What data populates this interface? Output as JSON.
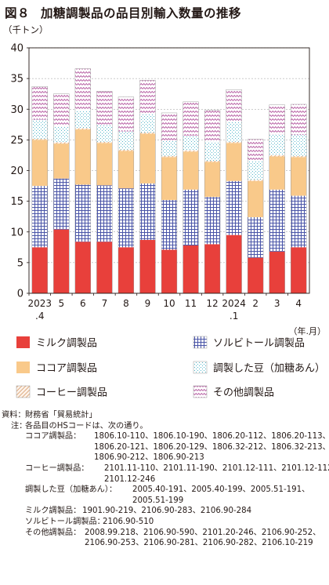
{
  "title": {
    "fig": "図８",
    "text": "加糖調製品の品目別輸入数量の推移"
  },
  "colors": {
    "milk": "#e8403b",
    "sorbitol_bg": "#ffffff",
    "sorbitol_fg": "#4a55a8",
    "cocoa": "#f9c98a",
    "cocoa_stroke": "#d9a760",
    "beans_bg": "#ffffff",
    "beans_fg": "#52b5c8",
    "coffee_bg": "#fdf3ea",
    "coffee_fg": "#d7a072",
    "other_bg": "#ffffff",
    "other_fg": "#b0509b",
    "axis": "#231815",
    "grid": "#999999"
  },
  "chart_data": {
    "type": "bar",
    "stacked": true,
    "yunit": "（千トン）",
    "xunit": "（年.月）",
    "ylim": [
      0,
      40
    ],
    "yticks": [
      0,
      5,
      10,
      15,
      20,
      25,
      30,
      35,
      40
    ],
    "grid": true,
    "legend_position": "bottom",
    "categories": [
      "2023.4",
      "5",
      "6",
      "7",
      "8",
      "9",
      "10",
      "11",
      "12",
      "2024.1",
      "2",
      "3",
      "4"
    ],
    "x_tick_labels": [
      [
        "2023",
        ".4"
      ],
      [
        "5"
      ],
      [
        "6"
      ],
      [
        "7"
      ],
      [
        "8"
      ],
      [
        "9"
      ],
      [
        "10"
      ],
      [
        "11"
      ],
      [
        "12"
      ],
      [
        "2024",
        ".1"
      ],
      [
        "2"
      ],
      [
        "3"
      ],
      [
        "4"
      ]
    ],
    "series": [
      {
        "key": "milk",
        "name": "ミルク調製品",
        "values": [
          7.5,
          10.4,
          8.4,
          8.4,
          7.5,
          8.7,
          7.1,
          7.8,
          8.0,
          9.5,
          5.8,
          6.8,
          7.5
        ]
      },
      {
        "key": "sorbitol",
        "name": "ソルビトール調製品",
        "values": [
          10.0,
          8.3,
          9.3,
          9.2,
          9.6,
          9.2,
          8.1,
          9.1,
          7.7,
          8.8,
          6.6,
          10.1,
          8.4
        ]
      },
      {
        "key": "cocoa",
        "name": "ココア調製品",
        "values": [
          7.5,
          5.7,
          9.0,
          6.9,
          6.1,
          8.1,
          7.0,
          6.2,
          5.7,
          6.2,
          5.9,
          5.4,
          6.3
        ]
      },
      {
        "key": "coffee",
        "name": "コーヒー調製品",
        "values": [
          0.2,
          0.2,
          0.2,
          0.2,
          0.2,
          0.2,
          0.2,
          0.2,
          0.2,
          0.2,
          0.2,
          0.2,
          0.2
        ]
      },
      {
        "key": "beans",
        "name": "調製した豆（加糖あん）",
        "values": [
          3.1,
          2.6,
          2.9,
          2.8,
          3.0,
          3.0,
          2.4,
          2.4,
          3.1,
          3.2,
          3.0,
          3.4,
          3.4
        ]
      },
      {
        "key": "other",
        "name": "その他調製品",
        "values": [
          5.4,
          5.3,
          6.8,
          5.4,
          5.6,
          5.5,
          4.6,
          5.5,
          5.1,
          5.3,
          3.6,
          4.8,
          5.0
        ]
      }
    ],
    "legend_order": [
      "milk",
      "sorbitol",
      "cocoa",
      "beans",
      "coffee",
      "other"
    ]
  },
  "notes": {
    "source_label": "資料：",
    "source_text": "財務省「貿易統計」",
    "note_label": "注：",
    "note_text": "各品目のHSコードは、次の通り。",
    "items": [
      {
        "label": "ココア調製品：",
        "lines": [
          "1806.10-110、1806.10-190、1806.20-112、1806.20-113、",
          "1806.20-121、1806.20-129、1806.32-212、1806.32-213、",
          "1806.90-212、1806.90-213"
        ]
      },
      {
        "label": "コーヒー調製品：",
        "lines": [
          "2101.11-110、2101.11-190、2101.12-111、2101.12-112、",
          "2101.12-246"
        ]
      },
      {
        "label": "調製した豆（加糖あん）：",
        "lines": [
          "2005.40-191、2005.40-199、2005.51-191、",
          "2005.51-199"
        ]
      },
      {
        "label": "ミルク調製品：",
        "lines": [
          "1901.90-219、2106.90-283、2106.90-284"
        ]
      },
      {
        "label": "ソルビトール調製品：",
        "lines": [
          "2106.90-510"
        ]
      },
      {
        "label": "その他調製品：",
        "lines": [
          "2008.99.218、2106.90-590、2101.20-246、2106.90-252、",
          "2106.90-253、2106.90-281、2106.90-282、2106.10-219"
        ]
      }
    ]
  }
}
